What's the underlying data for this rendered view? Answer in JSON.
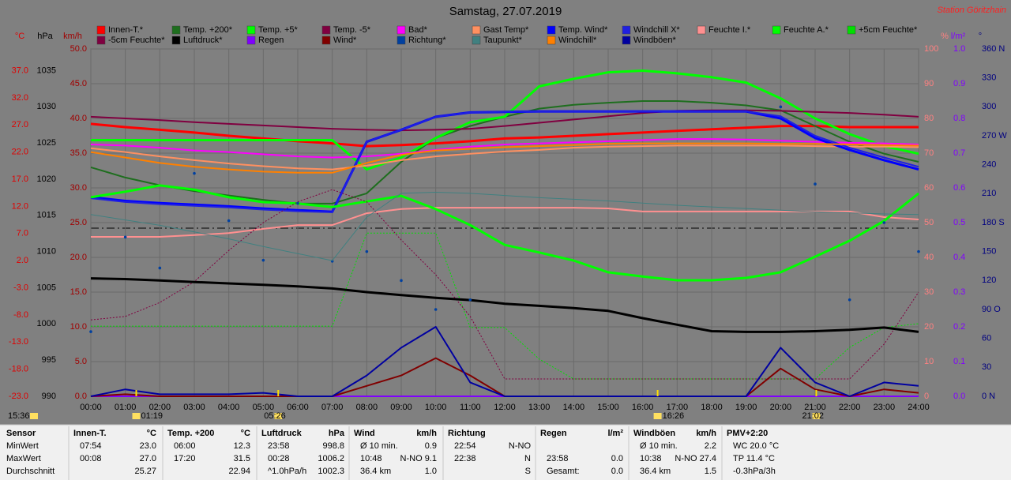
{
  "chart_data": {
    "type": "line",
    "title": "Samstag, 27.07.2019",
    "station": "Station Göritzhain",
    "prev_event": "15:36",
    "events": [
      "01:19",
      "05:26",
      "16:26",
      "21:02"
    ],
    "grid": true,
    "x": [
      "00:00",
      "01:00",
      "02:00",
      "03:00",
      "04:00",
      "05:00",
      "06:00",
      "07:00",
      "08:00",
      "09:00",
      "10:00",
      "11:00",
      "12:00",
      "13:00",
      "14:00",
      "15:00",
      "16:00",
      "17:00",
      "18:00",
      "19:00",
      "20:00",
      "21:00",
      "22:00",
      "23:00",
      "24:00"
    ],
    "xticks": [
      "00:00",
      "01:00",
      "02:00",
      "03:00",
      "04:00",
      "05:00",
      "06:00",
      "07:00",
      "08:00",
      "09:00",
      "10:00",
      "11:00",
      "12:00",
      "13:00",
      "14:00",
      "15:00",
      "16:00",
      "17:00",
      "18:00",
      "19:00",
      "20:00",
      "21:00",
      "22:00",
      "23:00",
      "24:00"
    ],
    "axes": [
      {
        "label": "°C",
        "color": "#e00000",
        "ylim": [
          -23,
          41
        ],
        "yticks": [
          {
            "value": 37,
            "label": "37.0"
          },
          {
            "value": 32,
            "label": "32.0"
          },
          {
            "value": 27,
            "label": "27.0"
          },
          {
            "value": 22,
            "label": "22.0"
          },
          {
            "value": 17,
            "label": "17.0"
          },
          {
            "value": 12,
            "label": "12.0"
          },
          {
            "value": 7,
            "label": "7.0"
          },
          {
            "value": 2,
            "label": "2.0"
          },
          {
            "value": -3,
            "label": "-3.0"
          },
          {
            "value": -8,
            "label": "-8.0"
          },
          {
            "value": -13,
            "label": "-13.0"
          },
          {
            "value": -18,
            "label": "-18.0"
          },
          {
            "value": -23,
            "label": "-23.0"
          }
        ]
      },
      {
        "label": "hPa",
        "color": "#000000",
        "ylim": [
          990,
          1038
        ],
        "yticks": [
          1035,
          1030,
          1025,
          1020,
          1015,
          1010,
          1005,
          1000,
          995,
          990
        ]
      },
      {
        "label": "km/h",
        "color": "#a00000",
        "ylim": [
          0,
          50
        ],
        "yticks": [
          {
            "value": 50,
            "label": "50.0"
          },
          {
            "value": 45,
            "label": "45.0"
          },
          {
            "value": 40,
            "label": "40.0"
          },
          {
            "value": 35,
            "label": "35.0"
          },
          {
            "value": 30,
            "label": "30.0"
          },
          {
            "value": 25,
            "label": "25.0"
          },
          {
            "value": 20,
            "label": "20.0"
          },
          {
            "value": 15,
            "label": "15.0"
          },
          {
            "value": 10,
            "label": "10.0"
          },
          {
            "value": 5,
            "label": "5.0"
          },
          {
            "value": 0,
            "label": "0.0"
          }
        ]
      },
      {
        "label": "%",
        "color": "#ff8080",
        "ylim": [
          0,
          100
        ],
        "yticks": [
          100,
          90,
          80,
          70,
          60,
          50,
          40,
          30,
          20,
          10,
          0
        ]
      },
      {
        "label": "l/m²",
        "color": "#8000ff",
        "ylim": [
          0,
          1
        ],
        "yticks": [
          {
            "value": 1,
            "label": "1.0"
          },
          0.9,
          0.8,
          0.7,
          0.6,
          0.5,
          0.4,
          0.3,
          0.2,
          0.1,
          {
            "value": 0,
            "label": "0.0"
          }
        ]
      },
      {
        "label": "°",
        "color": "#000080",
        "ylim": [
          0,
          360
        ],
        "yticks": [
          {
            "value": 360,
            "label": "360 N"
          },
          330,
          300,
          {
            "value": 270,
            "label": "270 W"
          },
          240,
          210,
          {
            "value": 180,
            "label": "180 S"
          },
          150,
          120,
          {
            "value": 90,
            "label": "90 O"
          },
          60,
          30,
          {
            "value": 0,
            "label": "0 N"
          }
        ]
      }
    ],
    "series": [
      {
        "name": "Innen-T.*",
        "color": "#ff0000",
        "axis": 0,
        "width": 3,
        "style": "solid",
        "values": [
          27.2,
          26.6,
          26.1,
          25.6,
          25.0,
          24.5,
          24.0,
          23.6,
          23.1,
          23.3,
          23.6,
          24.0,
          24.5,
          24.7,
          25.0,
          25.3,
          25.6,
          25.9,
          26.2,
          26.5,
          26.8,
          26.8,
          26.6,
          26.6,
          26.6
        ]
      },
      {
        "name": "Temp. +200*",
        "color": "#1e6e1e",
        "axis": 0,
        "width": 2,
        "style": "solid",
        "values": [
          19.2,
          17.3,
          15.9,
          14.8,
          14.0,
          13.2,
          12.5,
          12.5,
          14.4,
          20.2,
          24.6,
          26.8,
          28.5,
          30.0,
          30.7,
          31.1,
          31.4,
          31.4,
          31.1,
          30.6,
          29.7,
          26.8,
          23.9,
          21.7,
          20.2
        ]
      },
      {
        "name": "Temp. +5*",
        "color": "#00ff00",
        "axis": 0,
        "width": 3,
        "style": "solid",
        "values": [
          24.2,
          24.2,
          24.2,
          24.2,
          24.2,
          24.2,
          24.2,
          24.2,
          18.8,
          21.0,
          24.6,
          27.5,
          28.5,
          34.1,
          35.5,
          36.7,
          37.0,
          36.5,
          35.8,
          34.8,
          31.9,
          28.2,
          25.3,
          23.1,
          21.7
        ]
      },
      {
        "name": "Temp. -5*",
        "color": "#800040",
        "axis": 0,
        "width": 2,
        "style": "solid",
        "values": [
          28.5,
          28.2,
          27.9,
          27.5,
          27.2,
          26.9,
          26.6,
          26.3,
          26.1,
          26.0,
          26.1,
          26.3,
          26.8,
          27.4,
          28.0,
          28.6,
          29.2,
          29.6,
          29.7,
          29.7,
          29.6,
          29.4,
          29.2,
          28.9,
          28.5
        ]
      },
      {
        "name": "Bad*",
        "color": "#ff00ff",
        "axis": 0,
        "width": 2,
        "style": "solid",
        "values": [
          23.4,
          23.2,
          22.8,
          22.3,
          22.0,
          21.6,
          21.2,
          21.0,
          21.2,
          21.7,
          22.4,
          23.0,
          23.4,
          23.6,
          23.8,
          24.0,
          24.2,
          24.4,
          24.4,
          24.3,
          24.1,
          23.9,
          23.7,
          23.6,
          23.4
        ]
      },
      {
        "name": "Gast Temp*",
        "color": "#ff9060",
        "axis": 0,
        "width": 2,
        "style": "solid",
        "values": [
          22.7,
          22.0,
          21.2,
          20.5,
          19.9,
          19.4,
          19.0,
          18.8,
          19.5,
          20.5,
          21.2,
          21.7,
          22.1,
          22.4,
          22.8,
          23.0,
          23.1,
          23.2,
          23.2,
          23.2,
          23.2,
          23.1,
          23.0,
          23.0,
          22.9
        ]
      },
      {
        "name": "Temp. Wind*",
        "color": "#0000ff",
        "axis": 0,
        "width": 3,
        "style": "solid",
        "values": [
          13.7,
          13.0,
          12.6,
          12.3,
          12.0,
          11.6,
          11.3,
          11.0,
          23.9,
          26.1,
          28.5,
          29.3,
          29.4,
          29.5,
          29.5,
          29.5,
          29.5,
          29.5,
          29.5,
          29.5,
          28.2,
          24.6,
          22.4,
          20.5,
          18.8
        ]
      },
      {
        "name": "Windchill X*",
        "color": "#2020e0",
        "axis": 0,
        "width": 2,
        "style": "solid",
        "values": [
          13.5,
          12.8,
          12.4,
          12.1,
          11.8,
          11.4,
          11.1,
          10.9,
          23.9,
          26.1,
          28.5,
          29.3,
          29.4,
          29.5,
          29.5,
          29.5,
          29.5,
          29.5,
          29.5,
          29.5,
          28.6,
          25.0,
          22.8,
          21.0,
          19.3
        ]
      },
      {
        "name": "Feuchte I.*",
        "color": "#ff9090",
        "axis": 3,
        "width": 2,
        "style": "solid",
        "values": [
          45.9,
          45.9,
          45.9,
          46.4,
          47.0,
          48.2,
          49.3,
          49.3,
          52.7,
          53.9,
          54.3,
          54.3,
          54.3,
          54.3,
          54.3,
          54.1,
          53.2,
          53.2,
          53.2,
          53.2,
          53.2,
          53.2,
          53.2,
          51.6,
          50.9
        ]
      },
      {
        "name": "Feuchte A.*",
        "color": "#00ff00",
        "axis": 3,
        "width": 3,
        "style": "solid",
        "values": [
          57.3,
          58.9,
          60.7,
          59.5,
          57.3,
          55.9,
          55.5,
          54.5,
          56.1,
          57.7,
          53.9,
          49.3,
          43.6,
          41.4,
          39.1,
          35.7,
          34.5,
          33.4,
          33.4,
          34.1,
          35.7,
          40.2,
          44.8,
          50.5,
          58.4
        ]
      },
      {
        "name": "+5cm Feuchte*",
        "color": "#00e000",
        "axis": 3,
        "width": 1,
        "style": "dotted",
        "values": [
          20.2,
          20.2,
          20.2,
          20.2,
          20.2,
          20.2,
          20.2,
          20.2,
          47.0,
          47.0,
          47.0,
          19.8,
          19.8,
          10.7,
          5.0,
          5.0,
          5.0,
          5.0,
          5.0,
          5.0,
          5.0,
          5.0,
          14.1,
          19.8,
          20.9
        ]
      },
      {
        "name": "-5cm Feuchte*",
        "color": "#800040",
        "axis": 3,
        "width": 1,
        "style": "dotted",
        "values": [
          22.0,
          23.0,
          27.0,
          33.0,
          42.0,
          50.0,
          56.0,
          59.5,
          56.0,
          45.0,
          35.0,
          23.0,
          5.0,
          5.0,
          5.0,
          5.0,
          5.0,
          5.0,
          5.0,
          5.0,
          5.0,
          5.0,
          5.0,
          15.0,
          30.0
        ]
      },
      {
        "name": "Luftdruck*",
        "color": "#000000",
        "axis": 1,
        "width": 3,
        "style": "solid",
        "values": [
          1006.3,
          1006.2,
          1006.0,
          1005.8,
          1005.6,
          1005.4,
          1005.2,
          1004.9,
          1004.4,
          1004.0,
          1003.6,
          1003.3,
          1002.8,
          1002.5,
          1002.2,
          1001.8,
          1000.8,
          999.9,
          999.0,
          998.9,
          998.9,
          999.0,
          999.2,
          999.5,
          998.9
        ]
      },
      {
        "name": "Regen",
        "color": "#8000ff",
        "axis": 4,
        "width": 2,
        "style": "solid",
        "values": [
          0,
          0,
          0,
          0,
          0,
          0,
          0,
          0,
          0,
          0,
          0,
          0,
          0,
          0,
          0,
          0,
          0,
          0,
          0,
          0,
          0,
          0,
          0,
          0,
          0
        ]
      },
      {
        "name": "Wind*",
        "color": "#800000",
        "axis": 2,
        "width": 2,
        "style": "solid",
        "values": [
          0,
          0.3,
          0,
          0,
          0,
          0,
          0,
          0,
          1.5,
          3.0,
          5.5,
          3.0,
          0,
          0,
          0,
          0,
          0,
          0,
          0,
          0,
          4.0,
          1.0,
          0,
          1.0,
          0.5
        ]
      },
      {
        "name": "Richtung*",
        "color": "#0040a0",
        "axis": 5,
        "width": 1,
        "style": "points",
        "values": [
          67,
          165,
          133,
          231,
          182,
          141,
          200,
          140,
          150,
          120,
          90,
          100,
          null,
          null,
          null,
          null,
          null,
          null,
          null,
          null,
          300,
          220,
          100,
          180,
          150
        ]
      },
      {
        "name": "Taupunkt*",
        "color": "#408080",
        "axis": 0,
        "width": 1,
        "style": "solid",
        "values": [
          10.5,
          9.5,
          8.5,
          7.3,
          6.0,
          4.6,
          3.3,
          2.0,
          10.0,
          14.4,
          14.6,
          14.4,
          14.0,
          13.6,
          13.3,
          13.0,
          12.6,
          12.2,
          11.9,
          11.6,
          11.3,
          11.0,
          10.8,
          10.6,
          10.5
        ]
      },
      {
        "name": "Windchill*",
        "color": "#ff8000",
        "axis": 0,
        "width": 2,
        "style": "solid",
        "values": [
          22.0,
          21.0,
          20.0,
          19.3,
          18.8,
          18.4,
          18.2,
          18.2,
          20.0,
          21.5,
          22.3,
          22.6,
          22.9,
          23.1,
          23.3,
          23.5,
          23.6,
          23.6,
          23.6,
          23.6,
          23.5,
          23.5,
          23.4,
          23.3,
          23.2
        ]
      },
      {
        "name": "Windböen*",
        "color": "#0000a0",
        "axis": 2,
        "width": 2,
        "style": "solid",
        "values": [
          0,
          1.0,
          0.3,
          0.3,
          0.3,
          0.5,
          0,
          0,
          3.0,
          7.0,
          10.0,
          2.0,
          0,
          0,
          0,
          0,
          0,
          0,
          0,
          0,
          7.0,
          2.0,
          0,
          2.0,
          1.5
        ]
      }
    ]
  },
  "table": {
    "row_labels": [
      "Sensor",
      "MinWert",
      "MaxWert",
      "Durchschnitt"
    ],
    "columns": [
      {
        "name": "Innen-T.",
        "unit": "°C",
        "cells": [
          [
            "07:54",
            "23.0"
          ],
          [
            "00:08",
            "27.0"
          ],
          [
            null,
            "25.27"
          ]
        ]
      },
      {
        "name": "Temp. +200",
        "unit": "°C",
        "cells": [
          [
            "06:00",
            "12.3"
          ],
          [
            "17:20",
            "31.5"
          ],
          [
            null,
            "22.94"
          ]
        ]
      },
      {
        "name": "Luftdruck",
        "unit": "hPa",
        "cells": [
          [
            "23:58",
            "998.8"
          ],
          [
            "00:28",
            "1006.2"
          ],
          [
            "^1.0hPa/h",
            "1002.3"
          ]
        ]
      },
      {
        "name": "Wind",
        "unit": "km/h",
        "cells": [
          [
            "Ø 10 min.",
            "0.9"
          ],
          [
            "10:48",
            "N-NO 9.1"
          ],
          [
            "36.4 km",
            "1.0"
          ]
        ]
      },
      {
        "name": "Richtung",
        "unit": null,
        "cells": [
          [
            "22:54",
            "N-NO"
          ],
          [
            "22:38",
            "N"
          ],
          [
            null,
            "S"
          ]
        ]
      },
      {
        "name": "Regen",
        "unit": "l/m²",
        "cells": [
          [
            null,
            null
          ],
          [
            "23:58",
            "0.0"
          ],
          [
            "Gesamt:",
            "0.0"
          ]
        ]
      },
      {
        "name": "Windböen",
        "unit": "km/h",
        "cells": [
          [
            "Ø 10 min.",
            "2.2"
          ],
          [
            "10:38",
            "N-NO 27.4"
          ],
          [
            "36.4 km",
            "1.5"
          ]
        ]
      },
      {
        "name": "PMV+2:20",
        "unit": null,
        "cells": [
          [
            "WC 20.0 °C",
            null
          ],
          [
            "TP 11.4 °C",
            null
          ],
          [
            "-0.3hPa/3h",
            null
          ]
        ]
      }
    ]
  }
}
